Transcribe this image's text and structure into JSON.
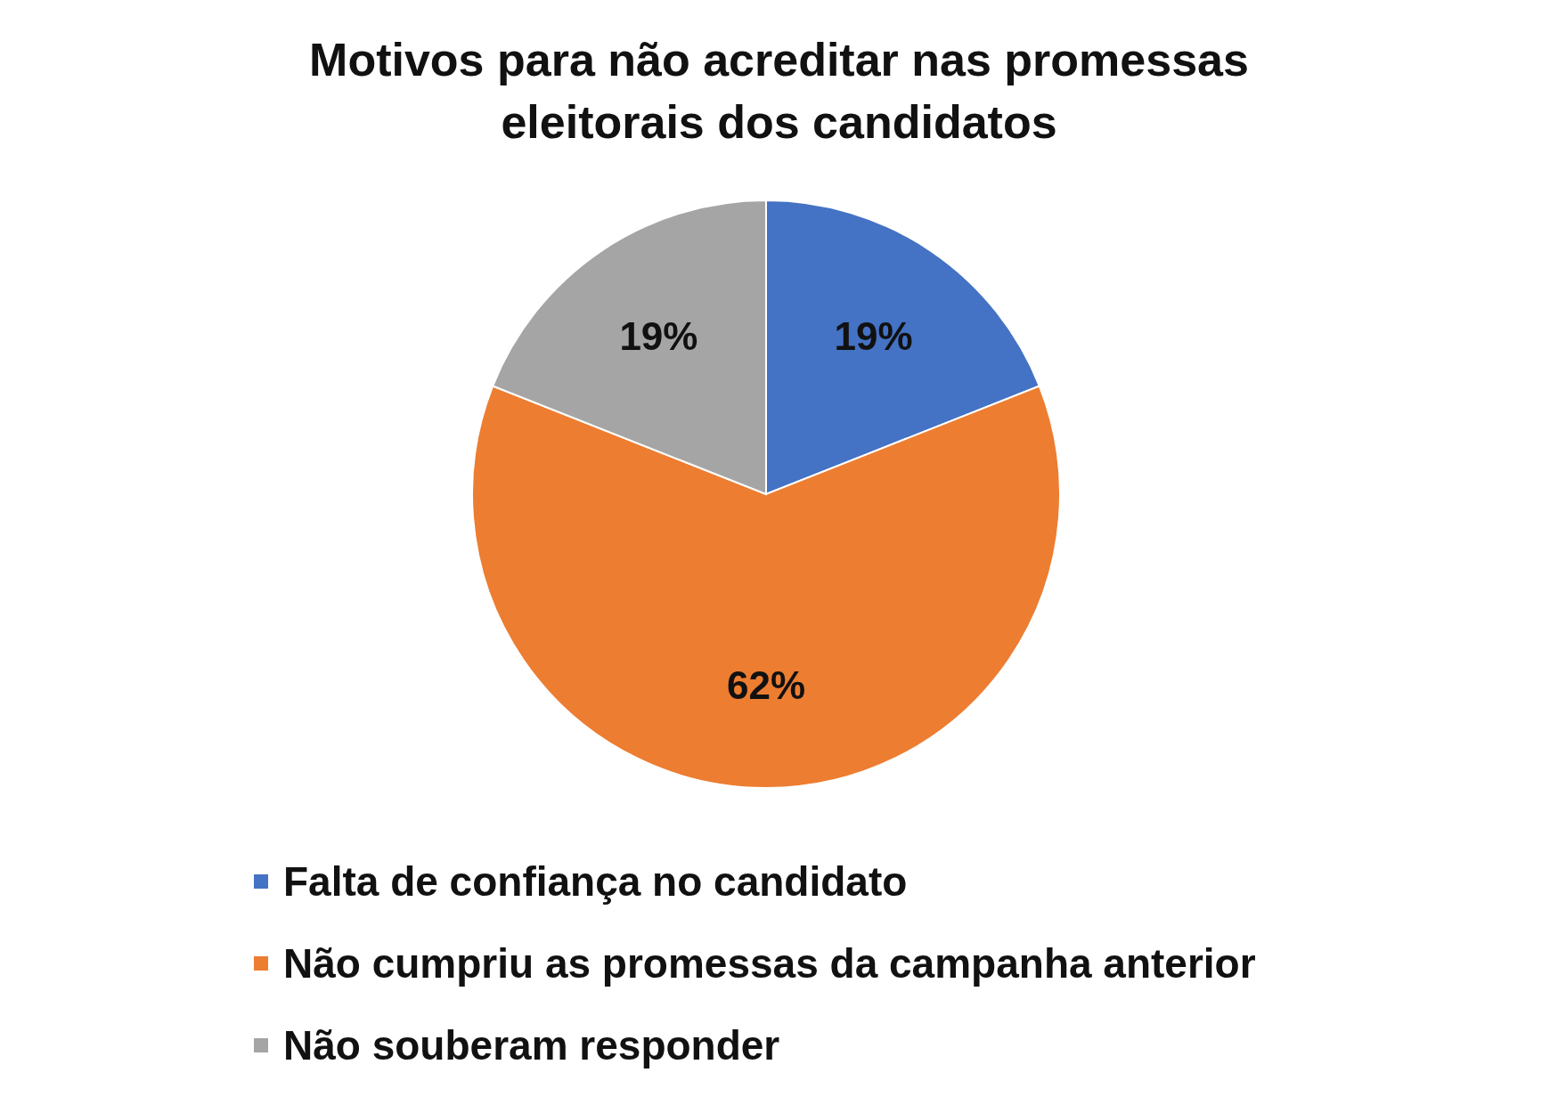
{
  "chart_data": {
    "type": "pie",
    "title": "Motivos para não acreditar nas promessas eleitorais dos candidatos",
    "categories": [
      "Falta de confiança no candidato",
      "Não cumpriu as promessas da campanha anterior",
      "Não souberam responder"
    ],
    "values": [
      19,
      62,
      19
    ],
    "colors": [
      "#4472c4",
      "#ed7d31",
      "#a5a5a5"
    ],
    "value_labels": [
      "19%",
      "62%",
      "19%"
    ],
    "legend": "bottom"
  }
}
